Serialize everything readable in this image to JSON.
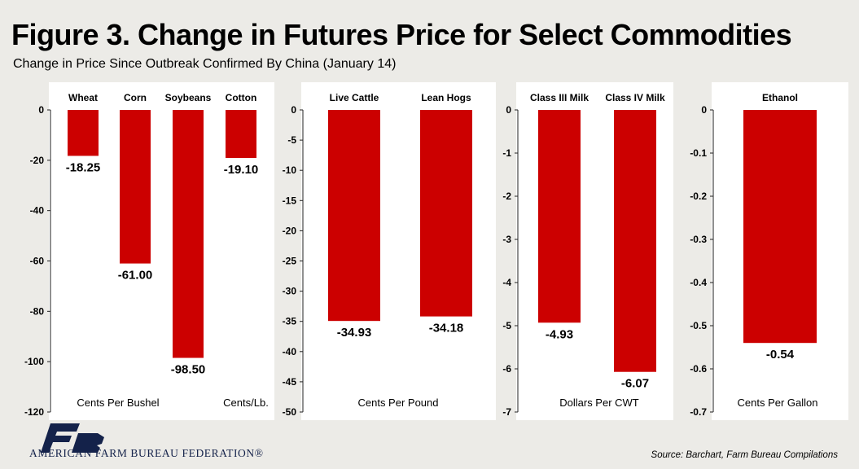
{
  "title": "Figure 3. Change in Futures Price for Select Commodities",
  "subtitle": "Change in Price Since Outbreak Confirmed By China (January 14)",
  "source": "Source: Barchart, Farm Bureau Compilations",
  "org_name": "AMERICAN FARM BUREAU FEDERATION®",
  "logo_icon": "farm-bureau-logo-icon",
  "colors": {
    "bar": "#cc0000",
    "background": "#ecebe7",
    "panel": "#ffffff",
    "logo_navy": "#14224a"
  },
  "chart_data": [
    {
      "type": "bar",
      "categories": [
        "Wheat",
        "Corn",
        "Soybeans",
        "Cotton"
      ],
      "values": [
        -18.25,
        -61.0,
        -98.5,
        -19.1
      ],
      "data_labels": [
        "-18.25",
        "-61.00",
        "-98.50",
        "-19.10"
      ],
      "ylim": [
        -120,
        0
      ],
      "yticks": [
        0,
        -20,
        -40,
        -60,
        -80,
        -100,
        -120
      ],
      "ytick_labels": [
        "0",
        "-20",
        "-40",
        "-60",
        "-80",
        "-100",
        "-120"
      ],
      "unit_labels": [
        "Cents Per Bushel",
        "Cents/Lb."
      ]
    },
    {
      "type": "bar",
      "categories": [
        "Live Cattle",
        "Lean Hogs"
      ],
      "values": [
        -34.93,
        -34.18
      ],
      "data_labels": [
        "-34.93",
        "-34.18"
      ],
      "ylim": [
        -50,
        0
      ],
      "yticks": [
        0,
        -5,
        -10,
        -15,
        -20,
        -25,
        -30,
        -35,
        -40,
        -45,
        -50
      ],
      "ytick_labels": [
        "0",
        "-5",
        "-10",
        "-15",
        "-20",
        "-25",
        "-30",
        "-35",
        "-40",
        "-45",
        "-50"
      ],
      "unit_labels": [
        "Cents Per Pound"
      ]
    },
    {
      "type": "bar",
      "categories": [
        "Class III Milk",
        "Class IV Milk"
      ],
      "values": [
        -4.93,
        -6.07
      ],
      "data_labels": [
        "-4.93",
        "-6.07"
      ],
      "ylim": [
        -7,
        0
      ],
      "yticks": [
        0,
        -1,
        -2,
        -3,
        -4,
        -5,
        -6,
        -7
      ],
      "ytick_labels": [
        "0",
        "-1",
        "-2",
        "-3",
        "-4",
        "-5",
        "-6",
        "-7"
      ],
      "unit_labels": [
        "Dollars Per CWT"
      ]
    },
    {
      "type": "bar",
      "categories": [
        "Ethanol"
      ],
      "values": [
        -0.54
      ],
      "data_labels": [
        "-0.54"
      ],
      "ylim": [
        -0.7,
        0
      ],
      "yticks": [
        0,
        -0.1,
        -0.2,
        -0.3,
        -0.4,
        -0.5,
        -0.6,
        -0.7
      ],
      "ytick_labels": [
        "0",
        "-0.1",
        "-0.2",
        "-0.3",
        "-0.4",
        "-0.5",
        "-0.6",
        "-0.7"
      ],
      "unit_labels": [
        "Cents Per Gallon"
      ]
    }
  ]
}
